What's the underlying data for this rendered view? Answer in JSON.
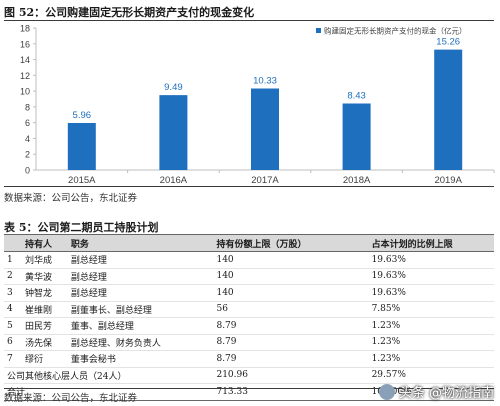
{
  "figure": {
    "title": "图 52：公司购建固定无形长期资产支付的现金变化",
    "source": "数据来源：公司公告，东北证券"
  },
  "chart_data": {
    "type": "bar",
    "categories": [
      "2015A",
      "2016A",
      "2017A",
      "2018A",
      "2019A"
    ],
    "series": [
      {
        "name": "购建固定无形长期资产支付的现金（亿元）",
        "values": [
          5.96,
          9.49,
          10.33,
          8.43,
          15.26
        ]
      }
    ],
    "value_labels": [
      "5.96",
      "9.49",
      "10.33",
      "8.43",
      "15.26"
    ],
    "ylim": [
      0,
      18
    ],
    "yticks": [
      "0",
      "2",
      "4",
      "6",
      "8",
      "10",
      "12",
      "14",
      "16",
      "18"
    ],
    "grid": false,
    "legend": "top-right",
    "bar_color": "#1f6fbf",
    "label_color": "#1f6fbf"
  },
  "table": {
    "title": "表 5：公司第二期员工持股计划",
    "headers": [
      "",
      "持有人",
      "职务",
      "持有份额上限（万股）",
      "占本计划的比例上限"
    ],
    "rows": [
      [
        "1",
        "刘华成",
        "副总经理",
        "140",
        "19.63%"
      ],
      [
        "2",
        "黄华波",
        "副总经理",
        "140",
        "19.63%"
      ],
      [
        "3",
        "钟智龙",
        "副总经理",
        "140",
        "19.63%"
      ],
      [
        "4",
        "崔维刚",
        "副董事长、副总经理",
        "56",
        "7.85%"
      ],
      [
        "5",
        "田民芳",
        "董事、副总经理",
        "8.79",
        "1.23%"
      ],
      [
        "6",
        "汤先保",
        "副总经理、财务负责人",
        "8.79",
        "1.23%"
      ],
      [
        "7",
        "缪衍",
        "董事会秘书",
        "8.79",
        "1.23%"
      ],
      [
        "",
        "公司其他核心层人员（24人）",
        "",
        "210.96",
        "29.57%"
      ],
      [
        "",
        "合计",
        "",
        "713.33",
        "100.00%"
      ]
    ],
    "source": "数据来源：公司公告，东北证券"
  },
  "watermark": "头条 @物流指南"
}
